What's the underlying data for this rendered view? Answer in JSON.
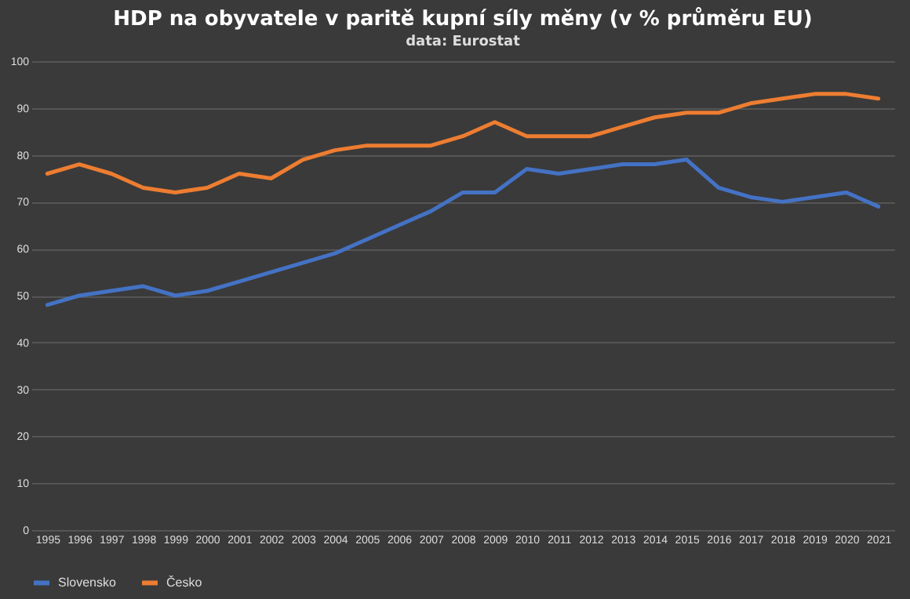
{
  "chart_data": {
    "type": "line",
    "title": "HDP na obyvatele v paritě kupní síly měny (v % průměru EU)",
    "subtitle": "data: Eurostat",
    "categories": [
      "1995",
      "1996",
      "1997",
      "1998",
      "1999",
      "2000",
      "2001",
      "2002",
      "2003",
      "2004",
      "2005",
      "2006",
      "2007",
      "2008",
      "2009",
      "2010",
      "2011",
      "2012",
      "2013",
      "2014",
      "2015",
      "2016",
      "2017",
      "2018",
      "2019",
      "2020",
      "2021"
    ],
    "series": [
      {
        "name": "Slovensko",
        "color": "#4472c4",
        "values": [
          48,
          50,
          51,
          52,
          50,
          51,
          53,
          55,
          57,
          59,
          62,
          65,
          68,
          72,
          72,
          77,
          76,
          77,
          78,
          78,
          79,
          73,
          71,
          70,
          71,
          72,
          69
        ]
      },
      {
        "name": "Česko",
        "color": "#ed7d31",
        "values": [
          76,
          78,
          76,
          73,
          72,
          73,
          76,
          75,
          79,
          81,
          82,
          82,
          82,
          84,
          87,
          84,
          84,
          84,
          86,
          88,
          89,
          89,
          91,
          92,
          93,
          93,
          92
        ]
      }
    ],
    "ylim": [
      0,
      100
    ],
    "yticks": [
      0,
      10,
      20,
      30,
      40,
      50,
      60,
      70,
      80,
      90,
      100
    ],
    "grid": "y",
    "legend": "bottom"
  }
}
